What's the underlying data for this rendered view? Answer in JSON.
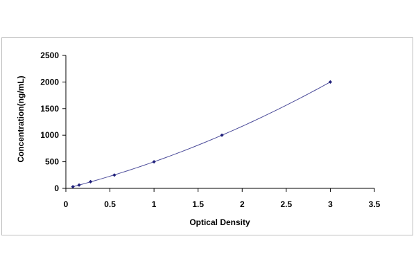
{
  "chart_data": {
    "type": "scatter",
    "title": "",
    "xlabel": "Optical Density",
    "ylabel": "Concentration(ng/mL)",
    "xlim": [
      0,
      3.5
    ],
    "ylim": [
      0,
      2500
    ],
    "x_ticks": [
      0,
      0.5,
      1,
      1.5,
      2,
      2.5,
      3,
      3.5
    ],
    "x_tick_labels": [
      "0",
      "0.5",
      "1",
      "1.5",
      "2",
      "2.5",
      "3",
      "3.5"
    ],
    "y_ticks": [
      0,
      500,
      1000,
      1500,
      2000,
      2500
    ],
    "y_tick_labels": [
      "0",
      "500",
      "1000",
      "1500",
      "2000",
      "2500"
    ],
    "grid": false,
    "legend": "none",
    "series": [
      {
        "points": [
          {
            "x": 0.08,
            "y": 31.25
          },
          {
            "x": 0.15,
            "y": 62.5
          },
          {
            "x": 0.28,
            "y": 125
          },
          {
            "x": 0.55,
            "y": 250
          },
          {
            "x": 1.0,
            "y": 500
          },
          {
            "x": 1.77,
            "y": 1000
          },
          {
            "x": 3.0,
            "y": 2000
          }
        ],
        "trendline": true,
        "color": "#1f1f7a"
      }
    ]
  }
}
